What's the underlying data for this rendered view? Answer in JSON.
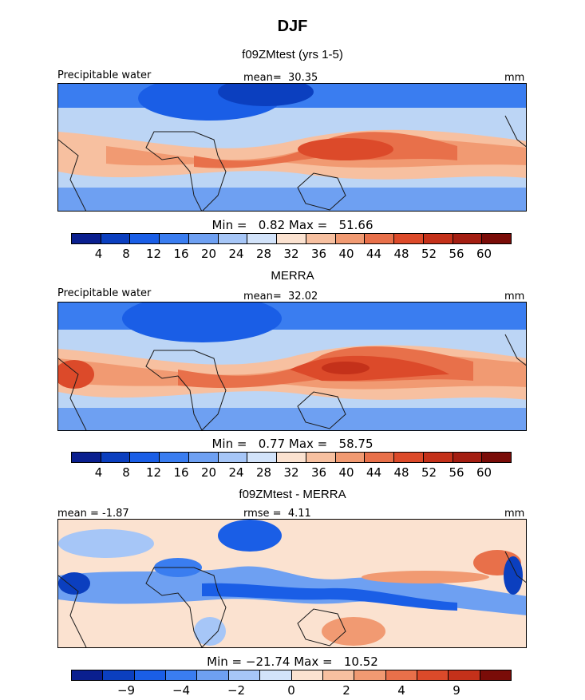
{
  "title": "DJF",
  "colors": {
    "land": "#1a1a1a",
    "abs_scale": [
      "#0a1f8f",
      "#0b3fbf",
      "#1a5ee6",
      "#3a7df0",
      "#6ea0f2",
      "#a6c6f7",
      "#d2e3fa",
      "#fbe2d0",
      "#f7c0a0",
      "#f19a72",
      "#e8704a",
      "#dc4a2a",
      "#c4311a",
      "#a41e12",
      "#7a0c08"
    ],
    "diff_scale": [
      "#0a1f8f",
      "#0b3fbf",
      "#1a5ee6",
      "#3a7df0",
      "#6ea0f2",
      "#a6c6f7",
      "#d2e3fa",
      "#fbe2d0",
      "#f7c0a0",
      "#f19a72",
      "#e8704a",
      "#dc4a2a",
      "#c4311a",
      "#7a0c08"
    ]
  },
  "panels": [
    {
      "title": "f09ZMtest (yrs 1-5)",
      "left_label": "Precipitable water",
      "center_label": "mean=  30.35",
      "right_label": "mm",
      "min_label": "Min =",
      "min_value": "0.82",
      "max_label": "Max =",
      "max_value": "51.66",
      "ticks": [
        "4",
        "8",
        "12",
        "16",
        "20",
        "24",
        "28",
        "32",
        "36",
        "40",
        "44",
        "48",
        "52",
        "56",
        "60"
      ]
    },
    {
      "title": "MERRA",
      "left_label": "Precipitable water",
      "center_label": "mean=  32.02",
      "right_label": "mm",
      "min_label": "Min =",
      "min_value": "0.77",
      "max_label": "Max =",
      "max_value": "58.75",
      "ticks": [
        "4",
        "8",
        "12",
        "16",
        "20",
        "24",
        "28",
        "32",
        "36",
        "40",
        "44",
        "48",
        "52",
        "56",
        "60"
      ]
    },
    {
      "title": "f09ZMtest - MERRA",
      "left_label": "mean = -1.87",
      "center_label": "rmse =  4.11",
      "right_label": "mm",
      "min_label": "Min =",
      "min_value": "−21.74",
      "max_label": "Max =",
      "max_value": "10.52",
      "ticks": [
        "−9",
        "−4",
        "−2",
        "0",
        "2",
        "4",
        "9"
      ]
    }
  ],
  "chart_data": [
    {
      "type": "heatmap",
      "title": "f09ZMtest (yrs 1-5)",
      "variable": "Precipitable water",
      "units": "mm",
      "mean": 30.35,
      "min": 0.82,
      "max": 51.66,
      "levels": [
        4,
        8,
        12,
        16,
        20,
        24,
        28,
        32,
        36,
        40,
        44,
        48,
        52,
        56,
        60
      ]
    },
    {
      "type": "heatmap",
      "title": "MERRA",
      "variable": "Precipitable water",
      "units": "mm",
      "mean": 32.02,
      "min": 0.77,
      "max": 58.75,
      "levels": [
        4,
        8,
        12,
        16,
        20,
        24,
        28,
        32,
        36,
        40,
        44,
        48,
        52,
        56,
        60
      ]
    },
    {
      "type": "heatmap",
      "title": "f09ZMtest - MERRA",
      "units": "mm",
      "mean": -1.87,
      "rmse": 4.11,
      "min": -21.74,
      "max": 10.52,
      "levels": [
        -9,
        -4,
        -2,
        0,
        2,
        4,
        9
      ]
    }
  ]
}
